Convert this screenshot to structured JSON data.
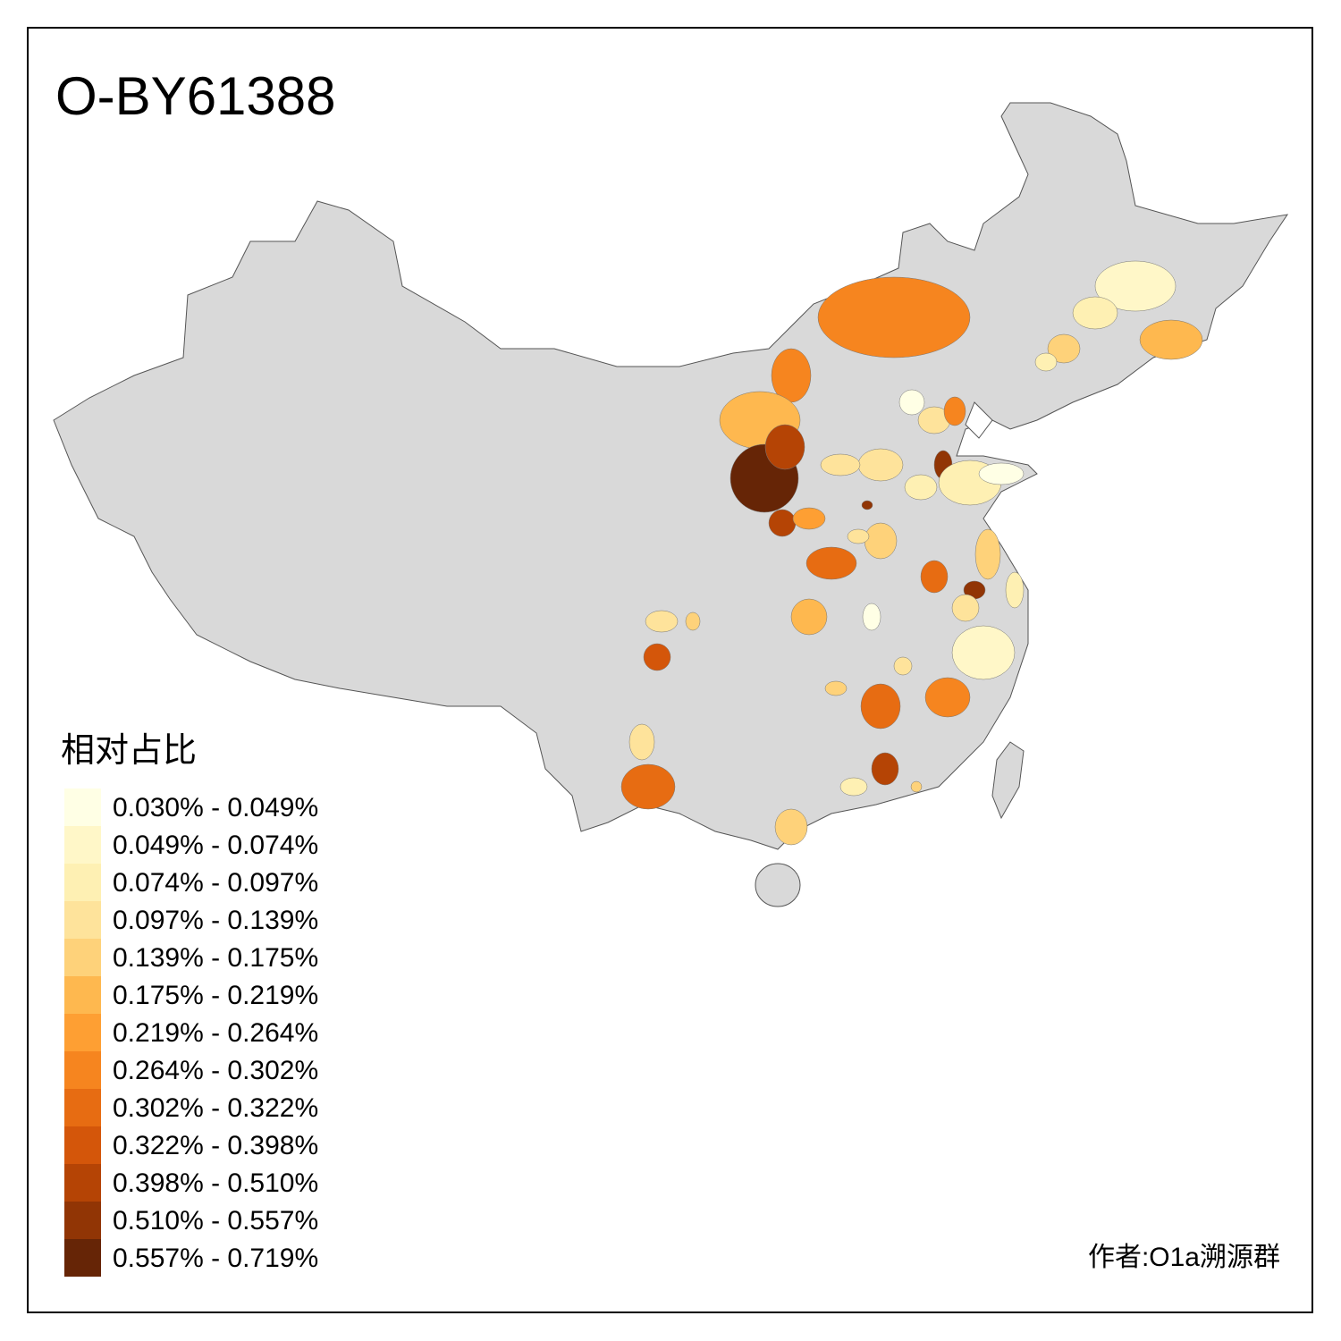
{
  "title": "O-BY61388",
  "legend": {
    "title": "相对占比",
    "items": [
      {
        "label": "0.030% - 0.049%",
        "color": "#ffffe5"
      },
      {
        "label": "0.049% - 0.074%",
        "color": "#fff7c8"
      },
      {
        "label": "0.074% - 0.097%",
        "color": "#fef0b3"
      },
      {
        "label": "0.097% - 0.139%",
        "color": "#fee39b"
      },
      {
        "label": "0.139% - 0.175%",
        "color": "#fed27a"
      },
      {
        "label": "0.175% - 0.219%",
        "color": "#feb84f"
      },
      {
        "label": "0.219% - 0.264%",
        "color": "#fe9f33"
      },
      {
        "label": "0.264% - 0.302%",
        "color": "#f6851f"
      },
      {
        "label": "0.302% - 0.322%",
        "color": "#e76c12"
      },
      {
        "label": "0.322% - 0.398%",
        "color": "#d4560a"
      },
      {
        "label": "0.398% - 0.510%",
        "color": "#b54405"
      },
      {
        "label": "0.510% - 0.557%",
        "color": "#913505"
      },
      {
        "label": "0.557% - 0.719%",
        "color": "#662506"
      }
    ]
  },
  "credit": "作者:O1a溯源群"
}
